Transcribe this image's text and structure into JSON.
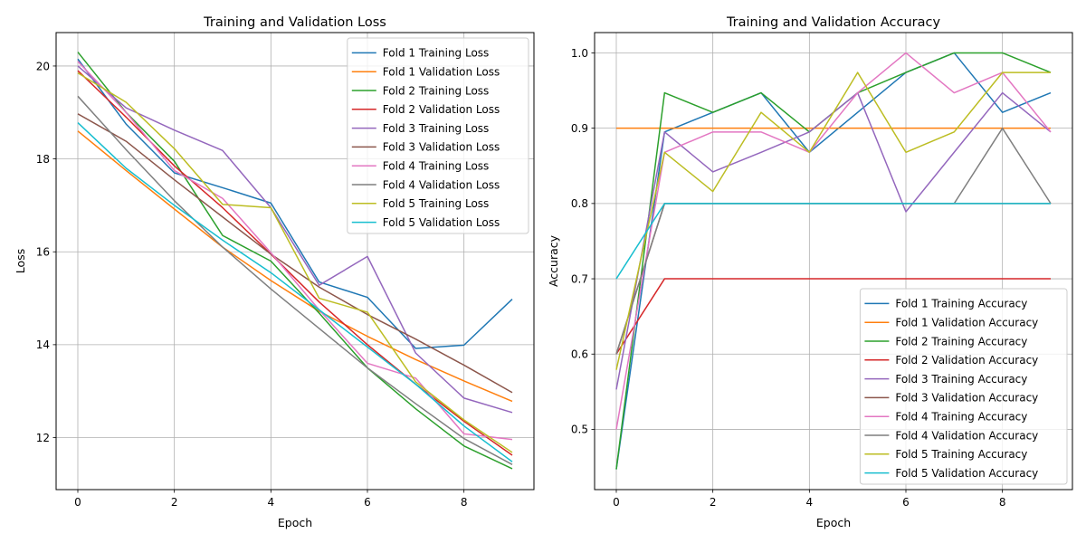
{
  "figure": {
    "background": "#ffffff"
  },
  "colors": [
    "#1f77b4",
    "#ff7f0e",
    "#2ca02c",
    "#d62728",
    "#9467bd",
    "#8c564b",
    "#e377c2",
    "#7f7f7f",
    "#bcbd22",
    "#17becf"
  ],
  "chart_data": [
    {
      "type": "line",
      "title": "Training and Validation Loss",
      "xlabel": "Epoch",
      "ylabel": "Loss",
      "xlim": [
        -0.45,
        9.45
      ],
      "ylim": [
        10.88,
        20.72
      ],
      "xticks": [
        0,
        2,
        4,
        6,
        8
      ],
      "yticks": [
        12,
        14,
        16,
        18,
        20
      ],
      "grid": true,
      "legend_position": "upper right",
      "x": [
        0,
        1,
        2,
        3,
        4,
        5,
        6,
        7,
        8,
        9
      ],
      "series": [
        {
          "name": "Fold 1 Training Loss",
          "values": [
            20.15,
            18.75,
            17.7,
            17.38,
            17.05,
            15.35,
            15.02,
            13.92,
            13.99,
            14.98
          ]
        },
        {
          "name": "Fold 1 Validation Loss",
          "values": [
            18.6,
            17.75,
            16.92,
            16.1,
            15.38,
            14.72,
            14.18,
            13.68,
            13.22,
            12.78
          ]
        },
        {
          "name": "Fold 2 Training Loss",
          "values": [
            20.3,
            19.0,
            17.95,
            16.35,
            15.8,
            14.68,
            13.5,
            12.62,
            11.82,
            11.33
          ]
        },
        {
          "name": "Fold 2 Validation Loss",
          "values": [
            19.9,
            18.9,
            17.85,
            16.95,
            15.95,
            14.92,
            14.0,
            13.15,
            12.35,
            11.62
          ]
        },
        {
          "name": "Fold 3 Training Loss",
          "values": [
            20.0,
            19.1,
            18.62,
            18.18,
            16.95,
            15.28,
            15.9,
            13.82,
            12.85,
            12.54
          ]
        },
        {
          "name": "Fold 3 Validation Loss",
          "values": [
            18.97,
            18.38,
            17.55,
            16.75,
            15.95,
            15.24,
            14.65,
            14.12,
            13.56,
            12.97
          ]
        },
        {
          "name": "Fold 4 Training Loss",
          "values": [
            20.1,
            19.0,
            17.75,
            17.15,
            15.98,
            14.75,
            13.6,
            13.28,
            12.08,
            11.96
          ]
        },
        {
          "name": "Fold 4 Validation Loss",
          "values": [
            19.35,
            18.2,
            17.1,
            16.1,
            15.2,
            14.35,
            13.5,
            12.73,
            11.98,
            11.42
          ]
        },
        {
          "name": "Fold 5 Training Loss",
          "values": [
            19.85,
            19.22,
            18.22,
            17.02,
            16.95,
            15.0,
            14.7,
            13.2,
            12.38,
            11.68
          ]
        },
        {
          "name": "Fold 5 Validation Loss",
          "values": [
            18.78,
            17.8,
            17.0,
            16.25,
            15.55,
            14.75,
            13.95,
            13.15,
            12.25,
            11.48
          ]
        }
      ]
    },
    {
      "type": "line",
      "title": "Training and Validation Accuracy",
      "xlabel": "Epoch",
      "ylabel": "Accuracy",
      "xlim": [
        -0.45,
        9.45
      ],
      "ylim": [
        0.42,
        1.027
      ],
      "xticks": [
        0,
        2,
        4,
        6,
        8
      ],
      "yticks": [
        0.5,
        0.6,
        0.7,
        0.8,
        0.9,
        1.0
      ],
      "ytick_labels": [
        "0.5",
        "0.6",
        "0.7",
        "0.8",
        "0.9",
        "1.0"
      ],
      "grid": true,
      "legend_position": "lower right",
      "x": [
        0,
        1,
        2,
        3,
        4,
        5,
        6,
        7,
        8,
        9
      ],
      "series": [
        {
          "name": "Fold 1 Training Accuracy",
          "values": [
            0.447,
            0.895,
            0.921,
            0.947,
            0.868,
            0.921,
            0.974,
            1.0,
            0.921,
            0.947
          ]
        },
        {
          "name": "Fold 1 Validation Accuracy",
          "values": [
            0.9,
            0.9,
            0.9,
            0.9,
            0.9,
            0.9,
            0.9,
            0.9,
            0.9,
            0.9
          ]
        },
        {
          "name": "Fold 2 Training Accuracy",
          "values": [
            0.447,
            0.947,
            0.921,
            0.947,
            0.895,
            0.947,
            0.974,
            1.0,
            1.0,
            0.974
          ]
        },
        {
          "name": "Fold 2 Validation Accuracy",
          "values": [
            0.6,
            0.7,
            0.7,
            0.7,
            0.7,
            0.7,
            0.7,
            0.7,
            0.7,
            0.7
          ]
        },
        {
          "name": "Fold 3 Training Accuracy",
          "values": [
            0.553,
            0.895,
            0.842,
            0.868,
            0.895,
            0.947,
            0.789,
            0.868,
            0.947,
            0.895
          ]
        },
        {
          "name": "Fold 3 Validation Accuracy",
          "values": [
            0.6,
            0.8,
            0.8,
            0.8,
            0.8,
            0.8,
            0.8,
            0.8,
            0.8,
            0.8
          ]
        },
        {
          "name": "Fold 4 Training Accuracy",
          "values": [
            0.5,
            0.868,
            0.895,
            0.895,
            0.868,
            0.947,
            1.0,
            0.947,
            0.974,
            0.895
          ]
        },
        {
          "name": "Fold 4 Validation Accuracy",
          "values": [
            0.6,
            0.8,
            0.8,
            0.8,
            0.8,
            0.8,
            0.8,
            0.8,
            0.9,
            0.8
          ]
        },
        {
          "name": "Fold 5 Training Accuracy",
          "values": [
            0.579,
            0.868,
            0.816,
            0.921,
            0.868,
            0.974,
            0.868,
            0.895,
            0.974,
            0.974
          ]
        },
        {
          "name": "Fold 5 Validation Accuracy",
          "values": [
            0.7,
            0.8,
            0.8,
            0.8,
            0.8,
            0.8,
            0.8,
            0.8,
            0.8,
            0.8
          ]
        }
      ]
    }
  ]
}
